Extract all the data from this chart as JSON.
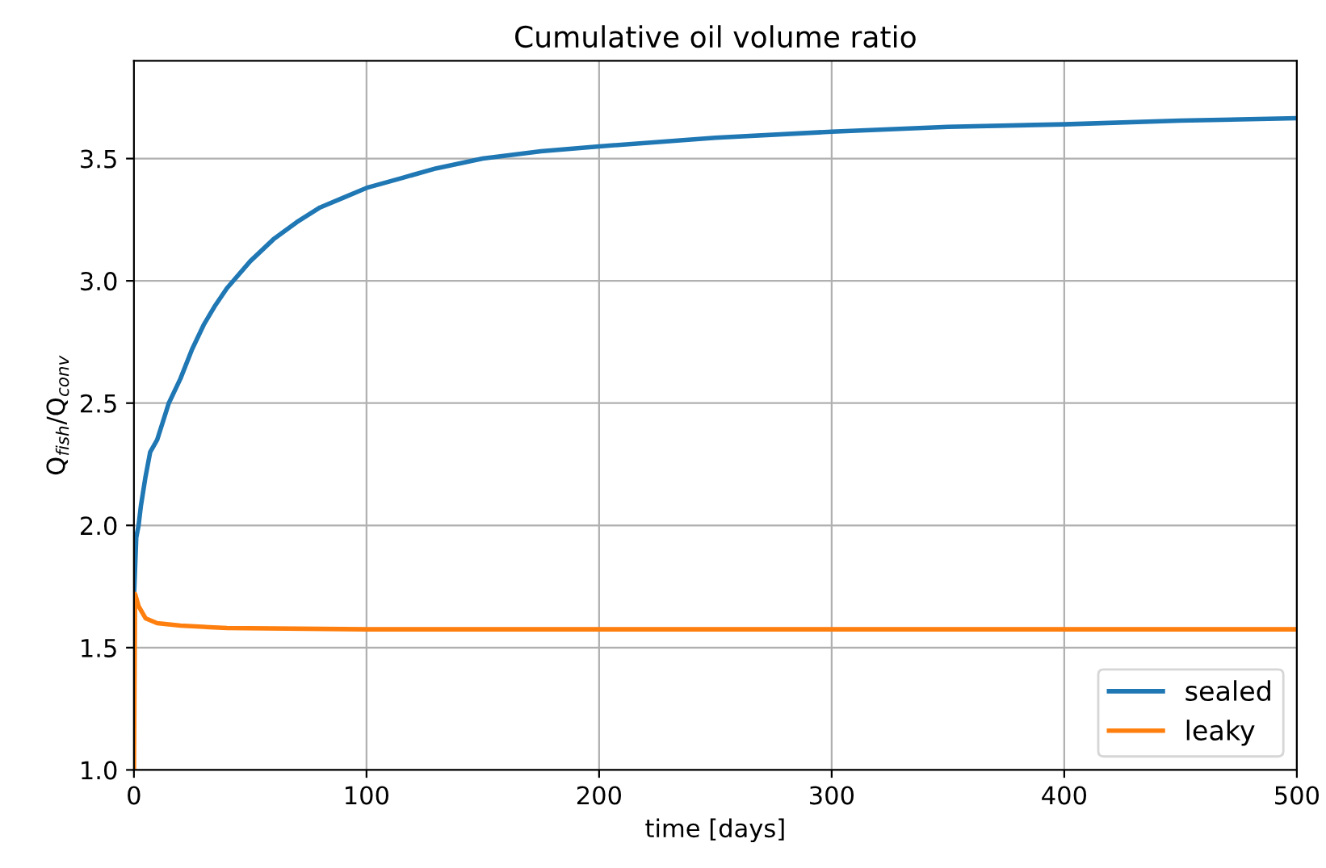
{
  "chart_data": {
    "type": "line",
    "title": "Cumulative oil volume ratio",
    "xlabel": "time [days]",
    "ylabel": "Q$_{fish}$/Q$_{conv}$",
    "xlim": [
      0,
      500
    ],
    "xticks": [
      0,
      100,
      200,
      300,
      400,
      500
    ],
    "ylim": [
      1.0,
      3.9
    ],
    "yticks": [
      {
        "value": 1.0,
        "label": "1.0"
      },
      {
        "value": 1.5,
        "label": "1.5"
      },
      {
        "value": 2.0,
        "label": "2.0"
      },
      {
        "value": 2.5,
        "label": "2.5"
      },
      {
        "value": 3.0,
        "label": "3.0"
      },
      {
        "value": 3.5,
        "label": "3.5"
      }
    ],
    "grid": true,
    "legend": "bottom right",
    "marker": "none",
    "line_style": "solid",
    "series": [
      {
        "name": "sealed",
        "color": "#1f77b4",
        "x": [
          0,
          1,
          2,
          3,
          5,
          7,
          10,
          15,
          20,
          25,
          30,
          35,
          40,
          50,
          60,
          70,
          80,
          90,
          100,
          115,
          130,
          150,
          175,
          200,
          250,
          300,
          350,
          400,
          450,
          500
        ],
        "values": [
          1.7,
          1.95,
          2.0,
          2.08,
          2.2,
          2.3,
          2.35,
          2.5,
          2.6,
          2.72,
          2.82,
          2.9,
          2.97,
          3.08,
          3.17,
          3.24,
          3.3,
          3.34,
          3.38,
          3.42,
          3.46,
          3.5,
          3.53,
          3.55,
          3.585,
          3.61,
          3.63,
          3.64,
          3.655,
          3.665
        ]
      },
      {
        "name": "leaky",
        "color": "#ff7f0e",
        "x": [
          0,
          0.5,
          2,
          5,
          10,
          20,
          40,
          100,
          200,
          300,
          400,
          500
        ],
        "values": [
          1.0,
          1.72,
          1.67,
          1.62,
          1.6,
          1.59,
          1.58,
          1.575,
          1.575,
          1.575,
          1.575,
          1.575
        ]
      }
    ]
  }
}
